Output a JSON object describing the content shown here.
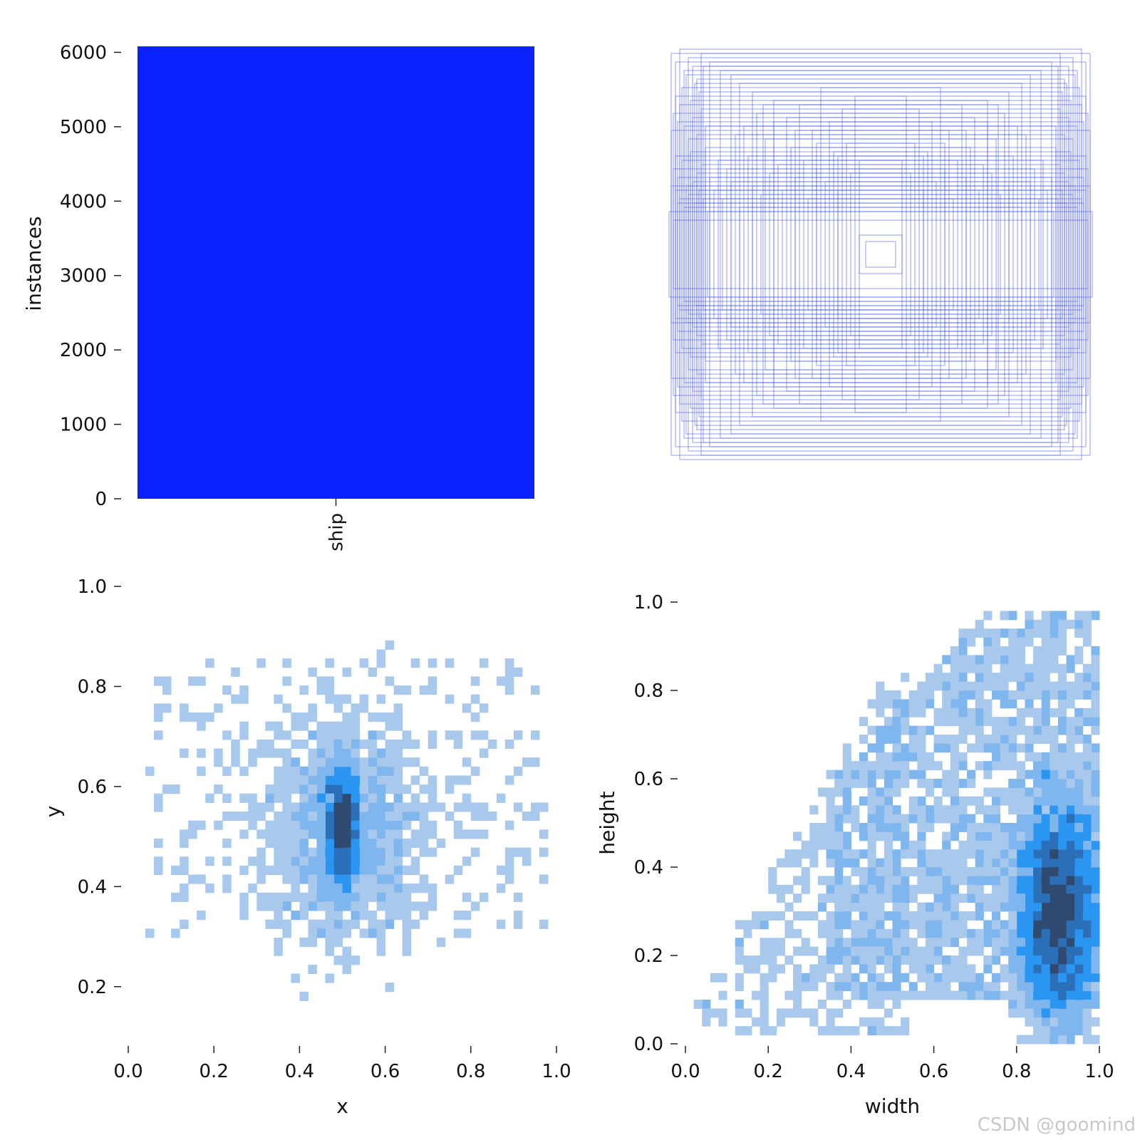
{
  "colors": {
    "bar": "#0a22ff",
    "box_stroke": "#3a4fe8",
    "hist_light": "#a8c8ec",
    "hist_mid": "#2b96f2",
    "hist_dark": "#2f4a6e",
    "tick": "#222222"
  },
  "watermark": "CSDN @goomind",
  "chart_data": [
    {
      "type": "bar",
      "categories": [
        "ship"
      ],
      "values": [
        6080
      ],
      "title": "",
      "xlabel": "",
      "ylabel": "instances",
      "ylim": [
        0,
        6100
      ],
      "yticks": [
        0,
        1000,
        2000,
        3000,
        4000,
        5000,
        6000
      ],
      "grid": false
    },
    {
      "type": "scatter",
      "title": "",
      "description_kind": "overlaid bounding boxes centered at (0.5, 0.5)",
      "xlim": [
        0,
        1
      ],
      "ylim": [
        0,
        1
      ],
      "axes_visible": false,
      "boxes_wh_sample": [
        [
          0.98,
          0.94
        ],
        [
          0.96,
          0.9
        ],
        [
          0.94,
          0.96
        ],
        [
          0.92,
          0.86
        ],
        [
          0.9,
          0.92
        ],
        [
          0.88,
          0.88
        ],
        [
          0.86,
          0.82
        ],
        [
          0.84,
          0.94
        ],
        [
          0.8,
          0.9
        ],
        [
          0.75,
          0.86
        ],
        [
          0.7,
          0.84
        ],
        [
          0.66,
          0.8
        ],
        [
          0.6,
          0.76
        ],
        [
          0.55,
          0.7
        ],
        [
          0.5,
          0.62
        ],
        [
          0.4,
          0.58
        ],
        [
          0.3,
          0.52
        ],
        [
          0.2,
          0.46
        ],
        [
          0.1,
          0.09
        ],
        [
          0.07,
          0.06
        ],
        [
          0.97,
          0.4
        ],
        [
          0.96,
          0.3
        ],
        [
          0.95,
          0.36
        ],
        [
          0.94,
          0.26
        ],
        [
          0.93,
          0.44
        ],
        [
          0.92,
          0.22
        ],
        [
          0.91,
          0.32
        ],
        [
          0.9,
          0.28
        ],
        [
          0.89,
          0.48
        ],
        [
          0.88,
          0.34
        ],
        [
          0.87,
          0.24
        ],
        [
          0.86,
          0.38
        ],
        [
          0.85,
          0.3
        ],
        [
          0.84,
          0.42
        ],
        [
          0.83,
          0.26
        ],
        [
          0.82,
          0.5
        ],
        [
          0.81,
          0.2
        ],
        [
          0.8,
          0.36
        ],
        [
          0.78,
          0.3
        ],
        [
          0.76,
          0.44
        ],
        [
          0.74,
          0.26
        ],
        [
          0.72,
          0.4
        ],
        [
          0.7,
          0.34
        ],
        [
          0.68,
          0.56
        ],
        [
          0.66,
          0.22
        ],
        [
          0.64,
          0.6
        ],
        [
          0.62,
          0.46
        ],
        [
          0.6,
          0.32
        ],
        [
          0.58,
          0.66
        ],
        [
          0.56,
          0.28
        ],
        [
          0.54,
          0.54
        ],
        [
          0.52,
          0.38
        ],
        [
          0.5,
          0.72
        ],
        [
          0.48,
          0.42
        ],
        [
          0.46,
          0.3
        ],
        [
          0.44,
          0.64
        ],
        [
          0.42,
          0.5
        ],
        [
          0.4,
          0.36
        ],
        [
          0.38,
          0.7
        ],
        [
          0.36,
          0.44
        ],
        [
          0.34,
          0.26
        ],
        [
          0.32,
          0.58
        ],
        [
          0.3,
          0.4
        ],
        [
          0.28,
          0.78
        ],
        [
          0.26,
          0.34
        ],
        [
          0.24,
          0.62
        ],
        [
          0.22,
          0.48
        ],
        [
          0.2,
          0.3
        ],
        [
          0.18,
          0.68
        ],
        [
          0.16,
          0.52
        ],
        [
          0.14,
          0.38
        ],
        [
          0.12,
          0.74
        ],
        [
          0.1,
          0.44
        ],
        [
          0.98,
          0.58
        ],
        [
          0.97,
          0.66
        ],
        [
          0.96,
          0.74
        ],
        [
          0.95,
          0.62
        ],
        [
          0.94,
          0.7
        ],
        [
          0.93,
          0.78
        ],
        [
          0.92,
          0.6
        ],
        [
          0.91,
          0.84
        ],
        [
          0.9,
          0.54
        ],
        [
          0.89,
          0.72
        ],
        [
          0.88,
          0.64
        ],
        [
          0.87,
          0.8
        ],
        [
          0.86,
          0.56
        ],
        [
          0.85,
          0.76
        ],
        [
          0.84,
          0.68
        ],
        [
          0.83,
          0.88
        ],
        [
          0.82,
          0.6
        ],
        [
          0.99,
          0.2
        ],
        [
          0.98,
          0.32
        ],
        [
          0.97,
          0.16
        ],
        [
          0.96,
          0.46
        ],
        [
          0.95,
          0.24
        ]
      ]
    },
    {
      "type": "heatmap",
      "title": "",
      "xlabel": "x",
      "ylabel": "y",
      "xlim": [
        0,
        1
      ],
      "ylim": [
        0.1,
        1.0
      ],
      "xticks": [
        0.0,
        0.2,
        0.4,
        0.6,
        0.8,
        1.0
      ],
      "yticks": [
        0.2,
        0.4,
        0.6,
        0.8,
        1.0
      ],
      "bins": 50,
      "density_peak": [
        0.5,
        0.52
      ],
      "grid": false
    },
    {
      "type": "heatmap",
      "title": "",
      "xlabel": "width",
      "ylabel": "height",
      "xlim": [
        0,
        1
      ],
      "ylim": [
        0,
        1
      ],
      "xticks": [
        0.0,
        0.2,
        0.4,
        0.6,
        0.8,
        1.0
      ],
      "yticks": [
        0.0,
        0.2,
        0.4,
        0.6,
        0.8,
        1.0
      ],
      "bins": 50,
      "density_peak": [
        0.9,
        0.3
      ],
      "grid": false
    }
  ]
}
